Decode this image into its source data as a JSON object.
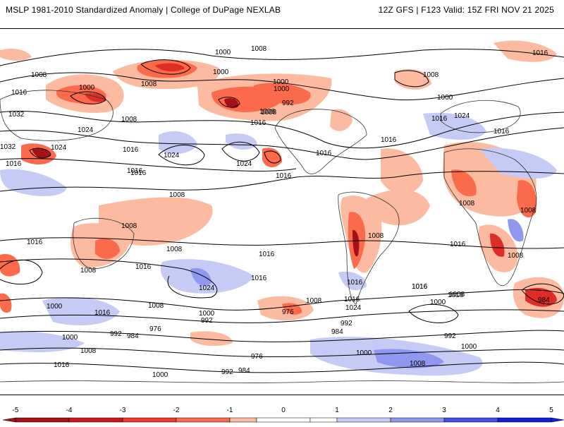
{
  "header": {
    "title": "MSLP 1981-2010 Standardized Anomaly | College of DuPage NEXLAB",
    "valid": "12Z GFS | F123 Valid: 15Z FRI NOV 21 2025"
  },
  "colors": {
    "neg_strong": "#a50f15",
    "neg_mid": "#de2d26",
    "neg_light": "#fb6a4a",
    "neg_faint": "#fcbba1",
    "pos_faint": "#c6cbf5",
    "pos_light": "#8f97ee",
    "pos_mid": "#4450e6",
    "pos_strong": "#1020d8",
    "contour": "#000000",
    "coast": "#333333"
  },
  "colorbar": {
    "ticks": [
      "-5",
      "-4",
      "-3",
      "-2",
      "-1",
      "0",
      "1",
      "2",
      "3",
      "4",
      "5"
    ],
    "bins": [
      {
        "from": -5,
        "to": -4,
        "color": "#a50f15"
      },
      {
        "from": -4,
        "to": -3,
        "color": "#cb181d"
      },
      {
        "from": -3,
        "to": -2,
        "color": "#ef3b2c"
      },
      {
        "from": -2,
        "to": -1,
        "color": "#fb6a4a"
      },
      {
        "from": -1,
        "to": -0.5,
        "color": "#fcbba1"
      },
      {
        "from": -0.5,
        "to": 0.5,
        "color": "#ffffff"
      },
      {
        "from": 0.5,
        "to": 1,
        "color": "#ffffff"
      },
      {
        "from": 1,
        "to": 2,
        "color": "#c6cbf5"
      },
      {
        "from": 2,
        "to": 3,
        "color": "#8f97ee"
      },
      {
        "from": 3,
        "to": 4,
        "color": "#4450e6"
      },
      {
        "from": 4,
        "to": 5,
        "color": "#1020d8"
      }
    ]
  },
  "isobar_labels": [
    "1000",
    "1008",
    "1000",
    "1008",
    "1016",
    "1008",
    "1000",
    "1008",
    "1000",
    "1016",
    "1032",
    "1016",
    "1024",
    "1008",
    "1024",
    "1032",
    "1016",
    "1016",
    "1024",
    "1024",
    "1016",
    "1016",
    "1000",
    "992",
    "1008",
    "1016",
    "1008",
    "1016",
    "1000",
    "1016",
    "1024",
    "1016",
    "1008",
    "1016",
    "1016",
    "1008",
    "1008",
    "1008",
    "1008",
    "1016",
    "1008",
    "1016",
    "1008",
    "1008",
    "1016",
    "1016",
    "1016",
    "1024",
    "1016",
    "1016",
    "1000",
    "1016",
    "1008",
    "1000",
    "992",
    "976",
    "1008",
    "992",
    "984",
    "1024",
    "1016",
    "1008",
    "1000",
    "984",
    "992",
    "1000",
    "992",
    "984",
    "976",
    "1008",
    "1000",
    "1016",
    "1000",
    "992",
    "984",
    "1000",
    "1008",
    "1016",
    "976"
  ]
}
